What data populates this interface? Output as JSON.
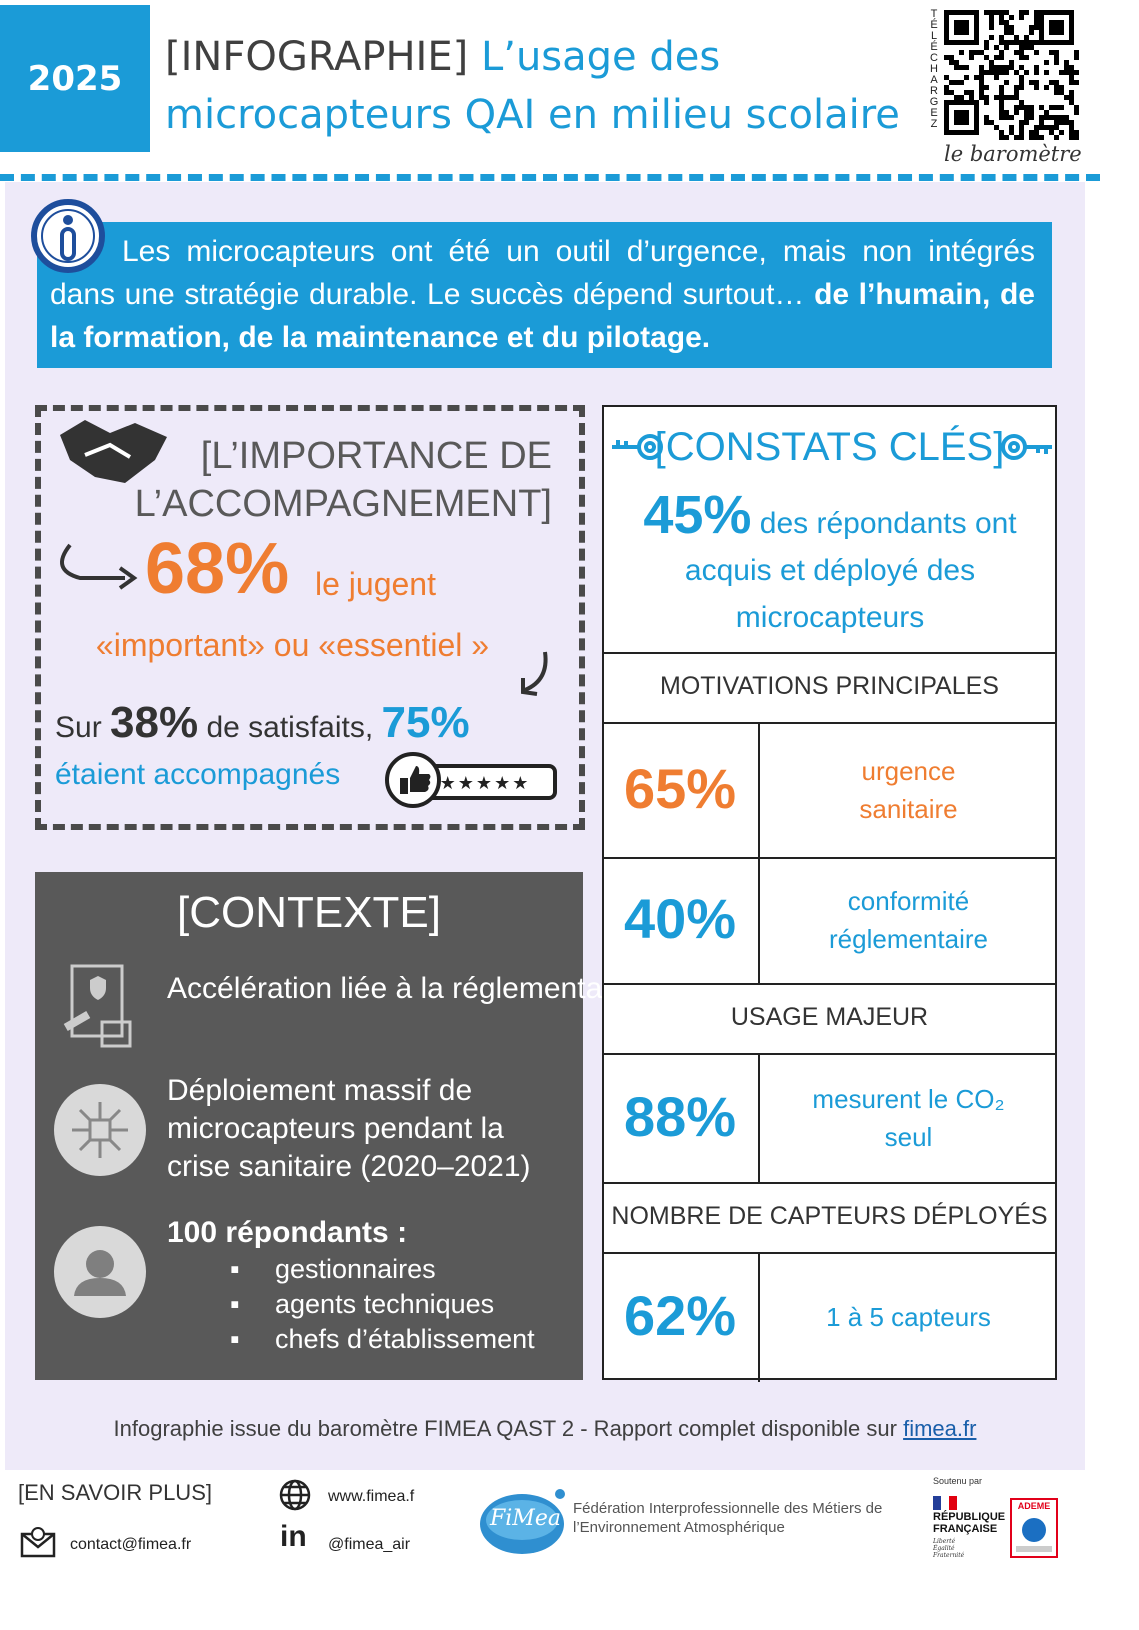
{
  "header": {
    "year": "2025",
    "title_prefix": "[INFOGRAPHIE]",
    "title_line1": "L’usage des",
    "title_line2": "microcapteurs QAI en milieu scolaire",
    "qr_vertical": "TÉLÉCHARGEZ",
    "qr_caption": "le baromètre"
  },
  "intro": {
    "text": "Les microcapteurs ont été un outil d’urgence, mais non intégrés dans une stratégie durable. Le succès dépend surtout…",
    "bold": "de l’humain, de la formation, de la maintenance et du pilotage."
  },
  "accompagnement": {
    "title_lines": [
      "[L’IMPORTANCE DE",
      "L’ACCOMPAGNEMENT]"
    ],
    "stat": "68%",
    "stat_text": "le jugent",
    "quote": "«important» ou «essentiel »",
    "prefix": "Sur",
    "stat2": "38%",
    "text2": "de satisfaits,",
    "stat3": "75%",
    "text3": "étaient accompagnés"
  },
  "contexte": {
    "title": "[CONTEXTE]",
    "items": [
      "Accélération liée à la réglementation ERP",
      "Déploiement massif de microcapteurs pendant la crise sanitaire (2020–2021)"
    ],
    "respondents": "100 répondants :",
    "list": [
      "gestionnaires",
      "agents techniques",
      "chefs d’établissement"
    ]
  },
  "constats": {
    "title": "[CONSTATS CLÉS]",
    "stat": "45%",
    "stat_text": "des répondants ont acquis et déployé des microcapteurs",
    "sections": [
      {
        "heading": "MOTIVATIONS PRINCIPALES",
        "rows": [
          {
            "value": "65%",
            "label": "urgence sanitaire"
          },
          {
            "value": "40%",
            "label": "conformité réglementaire"
          }
        ]
      },
      {
        "heading": "USAGE MAJEUR",
        "rows": [
          {
            "value": "88%",
            "label": "mesurent le CO₂ seul"
          }
        ]
      },
      {
        "heading": "NOMBRE DE CAPTEURS DÉPLOYÉS",
        "rows": [
          {
            "value": "62%",
            "label": "1 à 5 capteurs"
          }
        ]
      }
    ]
  },
  "footer": {
    "source": "Infographie issue du baromètre FIMEA QAST 2 - Rapport complet disponible sur",
    "link": "fimea.fr",
    "more": "[EN SAVOIR PLUS]",
    "email": "contact@fimea.fr",
    "website": "www.fimea.f",
    "linkedin_icon": "in",
    "linkedin": "@fimea_air",
    "logo": "FiMea",
    "org": "Fédération Interprofessionnelle des Métiers de l’Environnement Atmosphérique",
    "supported_by": "Soutenu par",
    "republique": "RÉPUBLIQUE FRANÇAISE",
    "devise": "Liberté Égalité Fraternité",
    "ademe": "ADEME"
  }
}
